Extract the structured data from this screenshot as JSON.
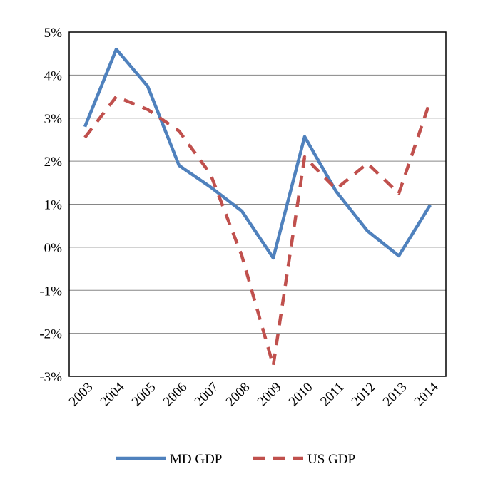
{
  "chart_data": {
    "type": "line",
    "categories": [
      "2003",
      "2004",
      "2005",
      "2006",
      "2007",
      "2008",
      "2009",
      "2010",
      "2011",
      "2012",
      "2013",
      "2014"
    ],
    "series": [
      {
        "name": "MD GDP",
        "color": "#4f81bd",
        "dash": "solid",
        "values": [
          2.8,
          4.6,
          3.74,
          1.9,
          1.4,
          0.84,
          -0.25,
          2.57,
          1.3,
          0.38,
          -0.2,
          0.98
        ]
      },
      {
        "name": "US GDP",
        "color": "#c0504d",
        "dash": "dashed",
        "values": [
          2.55,
          3.5,
          3.2,
          2.7,
          1.7,
          -0.2,
          -2.75,
          2.1,
          1.35,
          1.95,
          1.25,
          3.4
        ]
      }
    ],
    "ylim": [
      -3,
      5
    ],
    "yticks": [
      {
        "value": -3,
        "label": "-3%"
      },
      {
        "value": -2,
        "label": "-2%"
      },
      {
        "value": -1,
        "label": "-1%"
      },
      {
        "value": 0,
        "label": "0%"
      },
      {
        "value": 1,
        "label": "1%"
      },
      {
        "value": 2,
        "label": "2%"
      },
      {
        "value": 3,
        "label": "3%"
      },
      {
        "value": 4,
        "label": "4%"
      },
      {
        "value": 5,
        "label": "5%"
      }
    ],
    "grid": true,
    "legend": "bottom"
  }
}
